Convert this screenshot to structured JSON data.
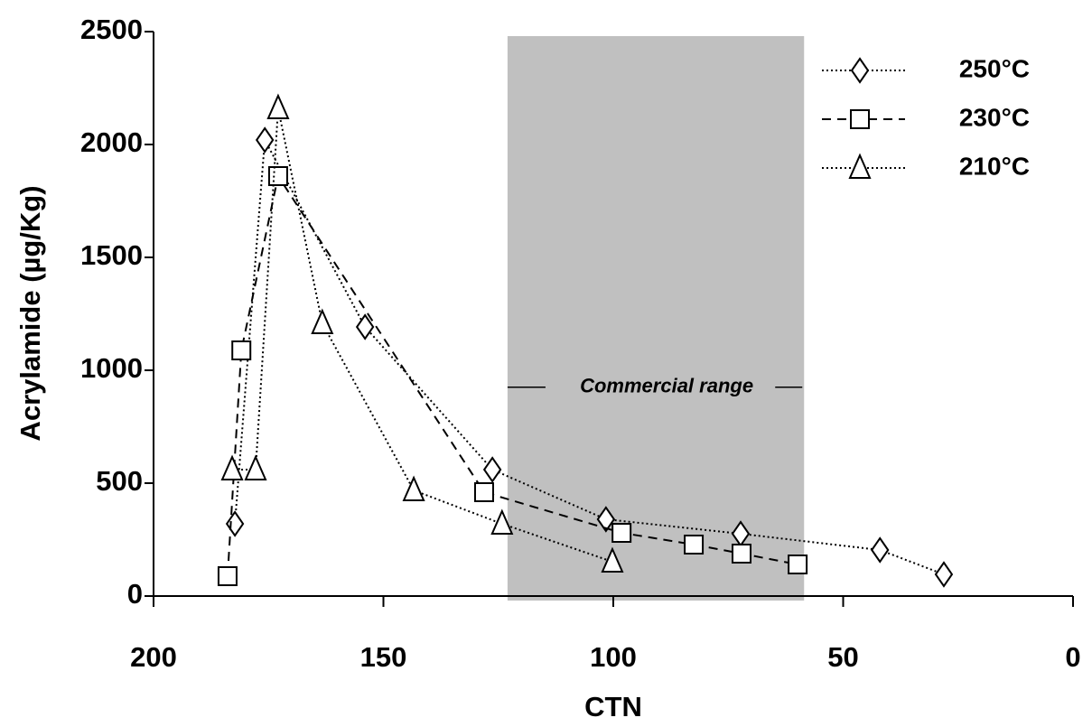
{
  "chart_data": {
    "type": "line",
    "x_label": "CTN",
    "y_label": "Acrylamide (µg/Kg)",
    "xlim": [
      200,
      0
    ],
    "ylim": [
      0,
      2500
    ],
    "xticks": [
      200,
      150,
      100,
      50,
      0
    ],
    "yticks": [
      0,
      500,
      1000,
      1500,
      2000,
      2500
    ],
    "shaded_region": {
      "xlim": [
        123,
        58.5
      ],
      "color": "#c0c0c0",
      "label": "Commercial range"
    },
    "legend": "upper right",
    "series": [
      {
        "name": "250°C",
        "color": "#000000",
        "marker": "diamond",
        "line_style": "dotted",
        "x": [
          182.3,
          175.8,
          154,
          126.3,
          101.6,
          72.3,
          42,
          28.1
        ],
        "values": [
          320,
          2020,
          1192,
          560,
          340,
          276,
          204,
          96
        ]
      },
      {
        "name": "230°C",
        "color": "#000000",
        "marker": "square",
        "line_style": "dashed",
        "x": [
          183.9,
          180.9,
          172.9,
          128.1,
          98.2,
          82.5,
          72.1,
          59.9
        ],
        "values": [
          88,
          1088,
          1860,
          460,
          280,
          228,
          188,
          140
        ]
      },
      {
        "name": "210°C",
        "color": "#000000",
        "marker": "triangle",
        "line_style": "dotted",
        "x": [
          182.9,
          177.8,
          172.9,
          163.3,
          143.4,
          124.2,
          100.2
        ],
        "values": [
          560,
          560,
          2160,
          1208,
          468,
          320,
          152
        ]
      }
    ]
  }
}
